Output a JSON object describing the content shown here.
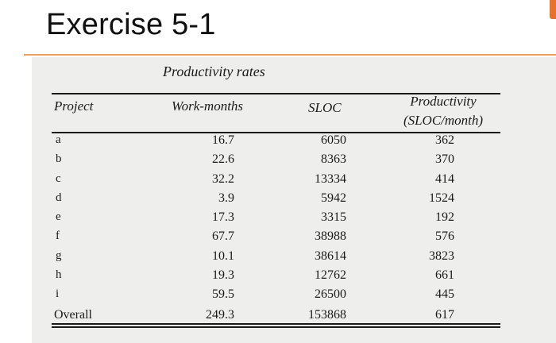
{
  "slide": {
    "title": "Exercise 5-1"
  },
  "table": {
    "caption": "Productivity rates",
    "headers": {
      "project": "Project",
      "work_months": "Work-months",
      "sloc": "SLOC",
      "productivity_line1": "Productivity",
      "productivity_line2": "(SLOC/month)"
    },
    "rows": [
      {
        "project": "a",
        "work_months": "16.7",
        "sloc": "6050",
        "productivity": "362"
      },
      {
        "project": "b",
        "work_months": "22.6",
        "sloc": "8363",
        "productivity": "370"
      },
      {
        "project": "c",
        "work_months": "32.2",
        "sloc": "13334",
        "productivity": "414"
      },
      {
        "project": "d",
        "work_months": "3.9",
        "sloc": "5942",
        "productivity": "1524"
      },
      {
        "project": "e",
        "work_months": "17.3",
        "sloc": "3315",
        "productivity": "192"
      },
      {
        "project": "f",
        "work_months": "67.7",
        "sloc": "38988",
        "productivity": "576"
      },
      {
        "project": "g",
        "work_months": "10.1",
        "sloc": "38614",
        "productivity": "3823"
      },
      {
        "project": "h",
        "work_months": "19.3",
        "sloc": "12762",
        "productivity": "661"
      },
      {
        "project": "i",
        "work_months": "59.5",
        "sloc": "26500",
        "productivity": "445"
      }
    ],
    "overall": {
      "project": "Overall",
      "work_months": "249.3",
      "sloc": "153868",
      "productivity": "617"
    }
  },
  "colors": {
    "accent": "#e8722a",
    "accent_line": "#e8a25f",
    "paper": "#eeeeec"
  }
}
